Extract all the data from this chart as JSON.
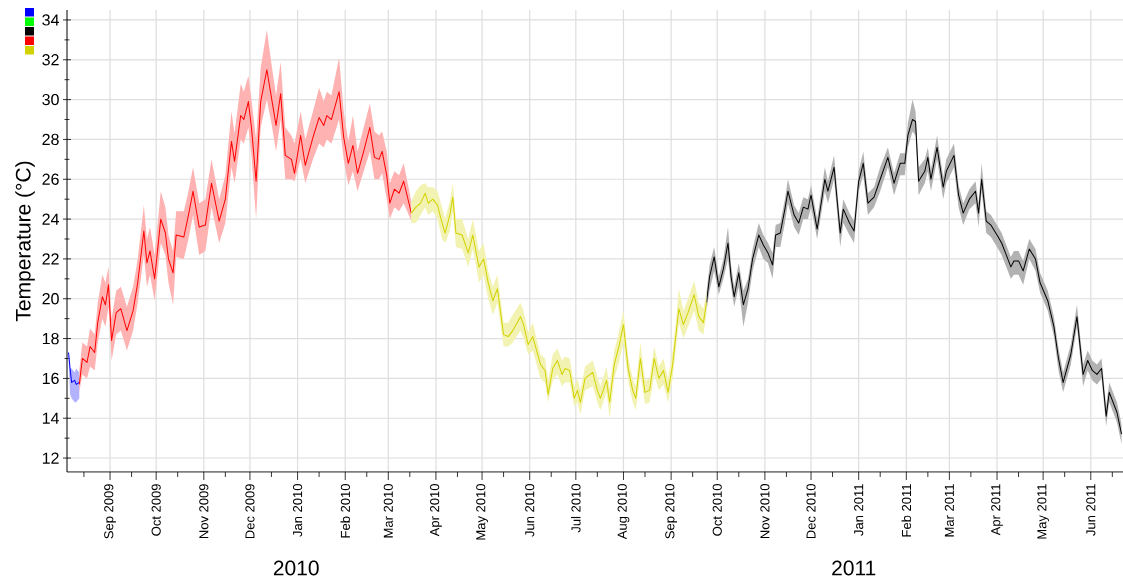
{
  "chart_data": {
    "type": "line",
    "ylabel": "Temperature (°C)",
    "annotations": [
      "2010",
      "2011"
    ],
    "xlim": [
      "2009-08-04",
      "2011-06-22"
    ],
    "ylim": [
      11.3,
      34.5
    ],
    "xticks": [
      {
        "value": "2009-08-15",
        "label": null
      },
      {
        "value": "2009-09-01",
        "label": "Sep 2009"
      },
      {
        "value": "2009-09-15",
        "label": null
      },
      {
        "value": "2009-10-01",
        "label": "Oct 2009"
      },
      {
        "value": "2009-10-15",
        "label": null
      },
      {
        "value": "2009-11-01",
        "label": "Nov 2009"
      },
      {
        "value": "2009-11-15",
        "label": null
      },
      {
        "value": "2009-12-01",
        "label": "Dec 2009"
      },
      {
        "value": "2009-12-15",
        "label": null
      },
      {
        "value": "2010-01-01",
        "label": "Jan 2010"
      },
      {
        "value": "2010-01-15",
        "label": null
      },
      {
        "value": "2010-02-01",
        "label": "Feb 2010"
      },
      {
        "value": "2010-02-15",
        "label": null
      },
      {
        "value": "2010-03-01",
        "label": "Mar 2010"
      },
      {
        "value": "2010-03-15",
        "label": null
      },
      {
        "value": "2010-04-01",
        "label": "Apr 2010"
      },
      {
        "value": "2010-04-15",
        "label": null
      },
      {
        "value": "2010-05-01",
        "label": "May 2010"
      },
      {
        "value": "2010-05-15",
        "label": null
      },
      {
        "value": "2010-06-01",
        "label": "Jun 2010"
      },
      {
        "value": "2010-06-15",
        "label": null
      },
      {
        "value": "2010-07-01",
        "label": "Jul 2010"
      },
      {
        "value": "2010-07-15",
        "label": null
      },
      {
        "value": "2010-08-01",
        "label": "Aug 2010"
      },
      {
        "value": "2010-08-15",
        "label": null
      },
      {
        "value": "2010-09-01",
        "label": "Sep 2010"
      },
      {
        "value": "2010-09-15",
        "label": null
      },
      {
        "value": "2010-10-01",
        "label": "Oct 2010"
      },
      {
        "value": "2010-10-15",
        "label": null
      },
      {
        "value": "2010-11-01",
        "label": "Nov 2010"
      },
      {
        "value": "2010-11-15",
        "label": null
      },
      {
        "value": "2010-12-01",
        "label": "Dec 2010"
      },
      {
        "value": "2010-12-15",
        "label": null
      },
      {
        "value": "2011-01-01",
        "label": "Jan 2011"
      },
      {
        "value": "2011-01-15",
        "label": null
      },
      {
        "value": "2011-02-01",
        "label": "Feb 2011"
      },
      {
        "value": "2011-02-15",
        "label": null
      },
      {
        "value": "2011-03-01",
        "label": "Mar 2011"
      },
      {
        "value": "2011-03-15",
        "label": null
      },
      {
        "value": "2011-04-01",
        "label": "Apr 2011"
      },
      {
        "value": "2011-04-15",
        "label": null
      },
      {
        "value": "2011-05-01",
        "label": "May 2011"
      },
      {
        "value": "2011-05-15",
        "label": null
      },
      {
        "value": "2011-06-01",
        "label": "Jun 2011"
      },
      {
        "value": "2011-06-15",
        "label": null
      }
    ],
    "yticks": [
      12,
      {
        "value": 13,
        "label": null
      },
      14,
      {
        "value": 15,
        "label": null
      },
      16,
      {
        "value": 17,
        "label": null
      },
      18,
      {
        "value": 19,
        "label": null
      },
      20,
      {
        "value": 21,
        "label": null
      },
      22,
      {
        "value": 23,
        "label": null
      },
      24,
      {
        "value": 25,
        "label": null
      },
      26,
      {
        "value": 27,
        "label": null
      },
      28,
      {
        "value": 29,
        "label": null
      },
      30,
      {
        "value": 31,
        "label": null
      },
      32,
      {
        "value": 33,
        "label": null
      },
      34
    ],
    "grid": true,
    "series": [
      {
        "color": "#0000ff",
        "x": [
          "2009-08-05",
          "2009-08-06",
          "2009-08-07",
          "2009-08-09",
          "2009-08-10",
          "2009-08-12"
        ],
        "values": [
          17.3,
          16.5,
          15.8,
          15.9,
          15.7,
          15.8
        ],
        "lower": [
          17.0,
          15.2,
          15.0,
          14.8,
          14.8,
          15.0
        ],
        "upper": [
          17.3,
          16.5,
          16.5,
          16.3,
          16.5,
          16.3
        ]
      },
      {
        "color": "#00ff00"
      },
      {
        "color": "#000000",
        "x": [
          "2010-09-24",
          "2010-09-26",
          "2010-09-29",
          "2010-10-02",
          "2010-10-05",
          "2010-10-08",
          "2010-10-10",
          "2010-10-12",
          "2010-10-15",
          "2010-10-18",
          "2010-10-21",
          "2010-10-24",
          "2010-10-28",
          "2010-10-31",
          "2010-11-03",
          "2010-11-06",
          "2010-11-08",
          "2010-11-11",
          "2010-11-14",
          "2010-11-16",
          "2010-11-20",
          "2010-11-23",
          "2010-11-26",
          "2010-11-29",
          "2010-12-01",
          "2010-12-05",
          "2010-12-10",
          "2010-12-12",
          "2010-12-16",
          "2010-12-20",
          "2010-12-22",
          "2010-12-26",
          "2010-12-29",
          "2011-01-01",
          "2011-01-04",
          "2011-01-07",
          "2011-01-11",
          "2011-01-15",
          "2011-01-20",
          "2011-01-24",
          "2011-01-28",
          "2011-01-31",
          "2011-02-02",
          "2011-02-05",
          "2011-02-07",
          "2011-02-09",
          "2011-02-13",
          "2011-02-15",
          "2011-02-17",
          "2011-02-21",
          "2011-02-25",
          "2011-02-27",
          "2011-03-04",
          "2011-03-07",
          "2011-03-10",
          "2011-03-14",
          "2011-03-18",
          "2011-03-20",
          "2011-03-22",
          "2011-03-25",
          "2011-03-28",
          "2011-04-01",
          "2011-04-04",
          "2011-04-07",
          "2011-04-10",
          "2011-04-12",
          "2011-04-15",
          "2011-04-18",
          "2011-04-22",
          "2011-04-26",
          "2011-04-29",
          "2011-05-04",
          "2011-05-08",
          "2011-05-11",
          "2011-05-14",
          "2011-05-19",
          "2011-05-23",
          "2011-05-27",
          "2011-05-30",
          "2011-06-02",
          "2011-06-05",
          "2011-06-08",
          "2011-06-11",
          "2011-06-13",
          "2011-06-18",
          "2011-06-21"
        ],
        "values": [
          19.8,
          21.1,
          22.1,
          20.6,
          21.5,
          22.8,
          21.1,
          20.1,
          21.3,
          19.7,
          20.5,
          22.0,
          23.2,
          22.7,
          22.3,
          21.7,
          23.2,
          23.3,
          24.5,
          25.4,
          24.2,
          23.8,
          24.6,
          24.5,
          25.2,
          23.5,
          26.0,
          25.4,
          26.6,
          23.3,
          24.5,
          23.8,
          23.4,
          25.9,
          26.8,
          24.8,
          25.1,
          26.0,
          27.1,
          25.8,
          26.8,
          26.8,
          28.2,
          29.0,
          28.9,
          25.9,
          26.4,
          27.1,
          26.0,
          27.6,
          25.6,
          26.4,
          27.2,
          25.2,
          24.3,
          25.0,
          25.4,
          24.3,
          26.0,
          23.9,
          23.7,
          23.2,
          22.8,
          22.2,
          21.6,
          21.9,
          21.9,
          21.4,
          22.5,
          22.0,
          20.8,
          19.9,
          18.6,
          17.0,
          15.8,
          17.2,
          19.1,
          16.2,
          16.9,
          16.4,
          16.2,
          16.5,
          14.1,
          15.3,
          14.3,
          13.2
        ],
        "lower": [
          19.4,
          20.4,
          21.4,
          20.2,
          21.0,
          22.0,
          20.6,
          19.6,
          20.6,
          18.6,
          19.8,
          21.4,
          22.6,
          22.0,
          21.8,
          21.0,
          22.6,
          22.6,
          23.8,
          24.8,
          23.6,
          23.2,
          24.0,
          24.0,
          24.6,
          23.0,
          25.4,
          24.8,
          26.0,
          22.6,
          23.8,
          23.2,
          22.8,
          25.4,
          26.2,
          24.2,
          24.6,
          25.4,
          26.6,
          25.2,
          26.2,
          26.2,
          27.6,
          28.4,
          28.2,
          25.2,
          25.8,
          26.4,
          25.4,
          27.0,
          25.0,
          25.8,
          26.6,
          24.6,
          23.7,
          24.5,
          24.8,
          23.6,
          25.4,
          23.3,
          23.1,
          22.6,
          22.2,
          21.6,
          21.0,
          21.2,
          21.2,
          20.7,
          22.0,
          21.4,
          20.3,
          19.4,
          18.1,
          16.4,
          15.3,
          16.7,
          18.6,
          15.6,
          16.4,
          15.9,
          15.7,
          16.0,
          13.6,
          14.8,
          13.8,
          12.7
        ],
        "upper": [
          20.3,
          21.7,
          22.6,
          21.1,
          22.0,
          23.6,
          21.7,
          20.6,
          21.8,
          20.4,
          21.0,
          22.5,
          23.8,
          23.2,
          22.8,
          22.3,
          23.7,
          23.8,
          25.0,
          26.0,
          24.7,
          24.3,
          25.1,
          25.0,
          25.7,
          24.0,
          26.6,
          25.9,
          27.2,
          23.8,
          25.0,
          24.3,
          23.9,
          26.4,
          27.4,
          25.3,
          25.6,
          26.6,
          27.6,
          26.3,
          27.3,
          27.3,
          28.8,
          30.0,
          29.4,
          26.6,
          27.0,
          27.6,
          26.5,
          28.2,
          26.1,
          27.0,
          27.8,
          25.7,
          24.8,
          25.5,
          25.9,
          24.8,
          26.8,
          24.4,
          24.2,
          23.7,
          23.3,
          22.7,
          22.1,
          22.4,
          22.4,
          21.9,
          23.0,
          22.5,
          21.3,
          20.4,
          19.1,
          17.5,
          16.3,
          17.7,
          19.7,
          16.7,
          17.4,
          16.9,
          16.7,
          17.0,
          14.6,
          15.8,
          14.8,
          13.7
        ]
      },
      {
        "color": "#ff0000",
        "x": [
          "2009-08-12",
          "2009-08-14",
          "2009-08-17",
          "2009-08-19",
          "2009-08-22",
          "2009-08-24",
          "2009-08-27",
          "2009-08-29",
          "2009-08-31",
          "2009-09-02",
          "2009-09-05",
          "2009-09-08",
          "2009-09-12",
          "2009-09-16",
          "2009-09-19",
          "2009-09-23",
          "2009-09-25",
          "2009-09-27",
          "2009-09-30",
          "2009-10-04",
          "2009-10-07",
          "2009-10-09",
          "2009-10-12",
          "2009-10-14",
          "2009-10-19",
          "2009-10-22",
          "2009-10-25",
          "2009-10-29",
          "2009-11-02",
          "2009-11-06",
          "2009-11-11",
          "2009-11-15",
          "2009-11-19",
          "2009-11-21",
          "2009-11-25",
          "2009-11-27",
          "2009-11-30",
          "2009-12-02",
          "2009-12-05",
          "2009-12-08",
          "2009-12-12",
          "2009-12-15",
          "2009-12-18",
          "2009-12-21",
          "2009-12-24",
          "2009-12-28",
          "2009-12-30",
          "2010-01-03",
          "2010-01-06",
          "2010-01-11",
          "2010-01-15",
          "2010-01-18",
          "2010-01-20",
          "2010-01-23",
          "2010-01-28",
          "2010-01-31",
          "2010-02-03",
          "2010-02-06",
          "2010-02-09",
          "2010-02-13",
          "2010-02-17",
          "2010-02-20",
          "2010-02-23",
          "2010-02-25",
          "2010-02-28",
          "2010-03-02",
          "2010-03-05",
          "2010-03-08",
          "2010-03-11",
          "2010-03-16"
        ],
        "values": [
          15.7,
          17.0,
          16.8,
          17.6,
          17.3,
          18.8,
          20.1,
          19.7,
          20.7,
          17.9,
          19.3,
          19.5,
          18.4,
          19.4,
          20.8,
          23.4,
          21.8,
          22.4,
          21.0,
          24.0,
          23.3,
          22.0,
          21.3,
          23.2,
          23.1,
          24.2,
          25.4,
          23.6,
          23.7,
          25.8,
          23.9,
          25.0,
          27.9,
          26.9,
          29.2,
          29.0,
          29.9,
          28.6,
          25.9,
          29.9,
          31.5,
          30.1,
          28.7,
          30.3,
          27.2,
          27.0,
          26.3,
          28.2,
          26.7,
          28.1,
          29.1,
          28.7,
          29.2,
          29.0,
          30.4,
          28.1,
          26.8,
          27.7,
          26.3,
          27.4,
          28.6,
          27.1,
          27.0,
          27.4,
          26.2,
          24.8,
          25.5,
          25.3,
          25.9,
          24.3
        ],
        "lower": [
          15.3,
          16.2,
          16.0,
          16.6,
          16.4,
          17.8,
          19.0,
          18.6,
          19.6,
          16.9,
          18.2,
          18.4,
          17.4,
          18.4,
          19.8,
          22.2,
          20.6,
          21.2,
          19.9,
          22.8,
          22.2,
          20.8,
          19.7,
          22.1,
          22.0,
          23.0,
          24.2,
          22.2,
          22.4,
          24.6,
          22.8,
          23.8,
          26.6,
          25.8,
          28.0,
          27.8,
          28.6,
          27.2,
          24.0,
          28.6,
          30.0,
          28.8,
          27.4,
          29.0,
          26.0,
          26.0,
          25.9,
          27.0,
          25.8,
          27.0,
          27.8,
          27.6,
          28.0,
          27.8,
          29.0,
          27.0,
          25.7,
          26.4,
          25.4,
          26.4,
          27.4,
          26.0,
          26.0,
          26.3,
          25.0,
          24.0,
          24.6,
          24.4,
          24.8,
          23.9
        ],
        "upper": [
          16.4,
          17.8,
          17.6,
          18.5,
          18.2,
          19.8,
          21.2,
          20.8,
          21.6,
          19.0,
          20.4,
          20.6,
          19.6,
          20.6,
          22.0,
          24.7,
          23.0,
          23.6,
          22.2,
          25.4,
          24.6,
          23.2,
          22.4,
          24.4,
          24.4,
          25.4,
          26.6,
          24.8,
          25.0,
          27.0,
          25.0,
          26.2,
          29.4,
          28.3,
          30.8,
          30.4,
          31.2,
          30.0,
          28.0,
          31.6,
          33.5,
          31.8,
          30.2,
          31.9,
          28.6,
          28.2,
          27.8,
          29.4,
          28.0,
          29.4,
          30.6,
          29.9,
          30.4,
          30.2,
          32.1,
          29.4,
          27.9,
          29.2,
          27.4,
          28.6,
          29.8,
          28.4,
          28.2,
          28.4,
          27.4,
          25.8,
          26.4,
          26.2,
          26.8,
          24.9
        ]
      },
      {
        "color": "#d2d200",
        "x": [
          "2010-03-16",
          "2010-03-19",
          "2010-03-22",
          "2010-03-25",
          "2010-03-27",
          "2010-03-30",
          "2010-04-02",
          "2010-04-05",
          "2010-04-07",
          "2010-04-10",
          "2010-04-12",
          "2010-04-14",
          "2010-04-18",
          "2010-04-22",
          "2010-04-25",
          "2010-04-29",
          "2010-05-02",
          "2010-05-05",
          "2010-05-08",
          "2010-05-11",
          "2010-05-15",
          "2010-05-18",
          "2010-05-21",
          "2010-05-26",
          "2010-05-28",
          "2010-05-31",
          "2010-06-03",
          "2010-06-08",
          "2010-06-11",
          "2010-06-13",
          "2010-06-16",
          "2010-06-19",
          "2010-06-22",
          "2010-06-24",
          "2010-06-27",
          "2010-06-30",
          "2010-07-02",
          "2010-07-04",
          "2010-07-07",
          "2010-07-12",
          "2010-07-15",
          "2010-07-17",
          "2010-07-21",
          "2010-07-23",
          "2010-07-26",
          "2010-07-29",
          "2010-08-01",
          "2010-08-04",
          "2010-08-07",
          "2010-08-09",
          "2010-08-12",
          "2010-08-15",
          "2010-08-18",
          "2010-08-21",
          "2010-08-24",
          "2010-08-27",
          "2010-08-30",
          "2010-09-02",
          "2010-09-04",
          "2010-09-06",
          "2010-09-09",
          "2010-09-12",
          "2010-09-16",
          "2010-09-19",
          "2010-09-22",
          "2010-09-24"
        ],
        "values": [
          24.3,
          24.6,
          24.8,
          25.3,
          24.8,
          25.0,
          24.7,
          23.8,
          23.3,
          24.2,
          25.1,
          23.3,
          23.2,
          22.3,
          23.2,
          21.6,
          22.0,
          20.8,
          19.9,
          20.5,
          18.2,
          18.1,
          18.4,
          19.1,
          18.7,
          17.7,
          18.1,
          16.7,
          16.4,
          15.2,
          16.5,
          16.9,
          16.2,
          16.5,
          16.4,
          15.0,
          15.4,
          14.8,
          16.0,
          16.3,
          15.4,
          15.0,
          15.9,
          14.8,
          16.7,
          17.6,
          18.7,
          16.5,
          15.4,
          15.0,
          17.0,
          15.3,
          15.4,
          17.0,
          16.0,
          16.4,
          15.3,
          16.7,
          18.1,
          19.5,
          18.7,
          19.3,
          20.2,
          19.1,
          18.8,
          19.8
        ],
        "lower": [
          23.8,
          23.8,
          24.2,
          24.6,
          24.2,
          24.4,
          24.0,
          23.0,
          22.8,
          23.4,
          24.4,
          22.6,
          22.5,
          21.6,
          22.5,
          20.8,
          21.2,
          20.0,
          19.2,
          19.8,
          17.6,
          17.6,
          17.8,
          18.4,
          18.0,
          17.2,
          17.4,
          16.0,
          15.8,
          14.8,
          15.9,
          16.2,
          15.6,
          15.8,
          15.8,
          14.6,
          14.8,
          14.2,
          15.4,
          15.6,
          14.8,
          14.4,
          15.3,
          14.0,
          16.0,
          16.8,
          17.8,
          15.9,
          14.8,
          14.4,
          16.2,
          14.7,
          14.8,
          16.2,
          15.4,
          15.7,
          14.8,
          16.0,
          17.4,
          18.8,
          18.0,
          18.6,
          19.4,
          18.4,
          18.2,
          19.2
        ],
        "upper": [
          24.9,
          25.4,
          25.7,
          25.8,
          25.6,
          25.6,
          25.4,
          24.6,
          24.0,
          24.9,
          25.8,
          24.0,
          24.0,
          23.0,
          24.0,
          22.4,
          22.8,
          21.4,
          20.6,
          21.2,
          18.8,
          18.8,
          19.2,
          19.8,
          19.4,
          18.3,
          18.8,
          17.2,
          17.0,
          15.9,
          17.2,
          17.5,
          16.9,
          17.1,
          17.0,
          15.6,
          16.0,
          15.4,
          16.6,
          16.9,
          16.1,
          15.6,
          16.6,
          15.5,
          17.4,
          18.3,
          19.4,
          17.1,
          16.0,
          15.6,
          17.8,
          15.9,
          16.0,
          17.6,
          16.6,
          17.0,
          16.0,
          17.4,
          18.8,
          20.5,
          19.4,
          20.0,
          20.9,
          19.8,
          19.5,
          20.4
        ]
      }
    ]
  }
}
